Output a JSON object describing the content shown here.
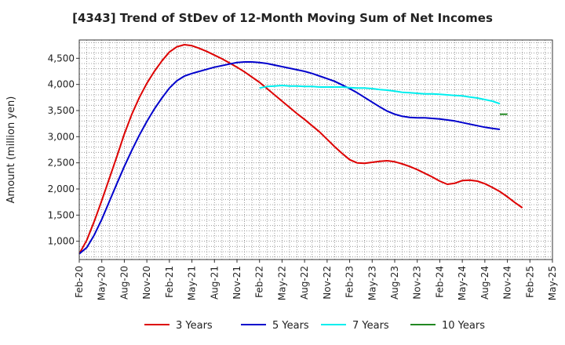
{
  "chart_data": {
    "type": "line",
    "title": "[4343]  Trend of StDev of 12-Month Moving Sum of Net Incomes",
    "xlabel": "",
    "ylabel": "Amount (million yen)",
    "ylim": [
      650,
      4850
    ],
    "yticks": [
      1000,
      1500,
      2000,
      2500,
      3000,
      3500,
      4000,
      4500
    ],
    "ytick_labels": [
      "1,000",
      "1,500",
      "2,000",
      "2,500",
      "3,000",
      "3,500",
      "4,000",
      "4,500"
    ],
    "x_tick_labels": [
      "Feb-20",
      "May-20",
      "Aug-20",
      "Nov-20",
      "Feb-21",
      "May-21",
      "Aug-21",
      "Nov-21",
      "Feb-22",
      "May-22",
      "Aug-22",
      "Nov-22",
      "Feb-23",
      "May-23",
      "Aug-23",
      "Nov-23",
      "Feb-24",
      "May-24",
      "Aug-24",
      "Nov-24",
      "Feb-25",
      "May-25"
    ],
    "grid": true,
    "legend_position": "bottom",
    "series": [
      {
        "name": "3 Years",
        "color": "#dd0000",
        "start_month": 0,
        "values": [
          760,
          1020,
          1380,
          1780,
          2200,
          2620,
          3050,
          3430,
          3750,
          4020,
          4250,
          4450,
          4620,
          4720,
          4760,
          4740,
          4690,
          4630,
          4560,
          4490,
          4410,
          4330,
          4240,
          4140,
          4040,
          3920,
          3800,
          3680,
          3560,
          3440,
          3330,
          3210,
          3090,
          2950,
          2810,
          2680,
          2560,
          2500,
          2490,
          2510,
          2530,
          2540,
          2520,
          2480,
          2430,
          2370,
          2300,
          2230,
          2150,
          2090,
          2110,
          2160,
          2170,
          2150,
          2100,
          2030,
          1950,
          1850,
          1740,
          1640
        ]
      },
      {
        "name": "5 Years",
        "color": "#0000cc",
        "start_month": 0,
        "values": [
          760,
          880,
          1120,
          1420,
          1760,
          2100,
          2430,
          2740,
          3030,
          3290,
          3530,
          3740,
          3930,
          4070,
          4160,
          4210,
          4250,
          4290,
          4330,
          4360,
          4390,
          4420,
          4430,
          4430,
          4420,
          4400,
          4370,
          4340,
          4310,
          4280,
          4250,
          4210,
          4160,
          4110,
          4060,
          3990,
          3920,
          3840,
          3750,
          3660,
          3570,
          3490,
          3430,
          3390,
          3370,
          3360,
          3360,
          3350,
          3340,
          3320,
          3300,
          3270,
          3240,
          3210,
          3180,
          3160,
          3140
        ]
      },
      {
        "name": "7 Years",
        "color": "#00eeee",
        "start_month": 24,
        "values": [
          3930,
          3960,
          3970,
          3980,
          3970,
          3970,
          3960,
          3960,
          3950,
          3950,
          3950,
          3950,
          3940,
          3930,
          3930,
          3920,
          3900,
          3890,
          3870,
          3850,
          3840,
          3830,
          3820,
          3820,
          3810,
          3800,
          3790,
          3780,
          3760,
          3740,
          3710,
          3680,
          3630
        ]
      },
      {
        "name": "10 Years",
        "color": "#228822",
        "start_month": 56,
        "values": [
          3430,
          3430
        ]
      }
    ]
  }
}
